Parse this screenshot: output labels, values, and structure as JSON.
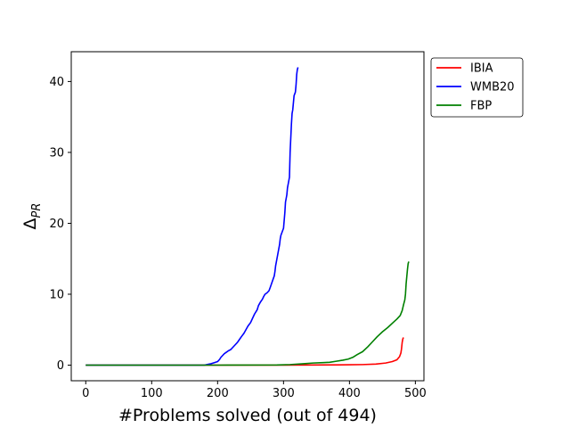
{
  "chart_data": {
    "type": "line",
    "xlabel": "#Problems solved (out of 494)",
    "ylabel": "Δ",
    "ylabel_subscript": "PR",
    "xlim": [
      -22,
      513
    ],
    "ylim": [
      -2.2,
      44.2
    ],
    "xticks": [
      0,
      100,
      200,
      300,
      400,
      500
    ],
    "yticks": [
      0,
      10,
      20,
      30,
      40
    ],
    "grid": false,
    "legend_position": "upper right, outside plot",
    "series": [
      {
        "name": "IBIA",
        "color": "#ff0000",
        "x": [
          0,
          100,
          200,
          300,
          350,
          400,
          420,
          440,
          455,
          465,
          472,
          476,
          478,
          479,
          480,
          481,
          482
        ],
        "y": [
          0,
          0,
          0,
          0,
          0.02,
          0.05,
          0.08,
          0.15,
          0.3,
          0.5,
          0.75,
          1.2,
          1.7,
          2.3,
          3.2,
          3.7,
          3.9
        ]
      },
      {
        "name": "WMB20",
        "color": "#0000ff",
        "x": [
          0,
          100,
          180,
          185,
          190,
          195,
          200,
          203,
          205,
          208,
          210,
          213,
          216,
          220,
          223,
          226,
          230,
          233,
          236,
          240,
          243,
          246,
          250,
          253,
          256,
          260,
          262,
          265,
          268,
          270,
          272,
          275,
          278,
          280,
          283,
          286,
          287,
          288,
          290,
          292,
          294,
          295,
          296,
          298,
          300,
          302,
          303,
          305,
          306,
          308,
          309,
          310,
          312,
          313,
          314,
          315,
          316,
          318,
          319,
          320,
          321,
          322
        ],
        "y": [
          0,
          0,
          0,
          0.1,
          0.2,
          0.35,
          0.5,
          0.8,
          1.1,
          1.4,
          1.6,
          1.8,
          2.0,
          2.2,
          2.5,
          2.8,
          3.2,
          3.6,
          4.0,
          4.5,
          5.0,
          5.5,
          6.0,
          6.6,
          7.2,
          7.8,
          8.4,
          8.9,
          9.3,
          9.7,
          10.0,
          10.2,
          10.5,
          11.0,
          11.8,
          12.6,
          13.2,
          14.0,
          15.0,
          16.0,
          17.0,
          17.8,
          18.3,
          18.8,
          19.3,
          21.5,
          23.0,
          24.0,
          25.0,
          26.0,
          26.5,
          30.0,
          34.0,
          35.5,
          36.0,
          37.0,
          38.0,
          38.5,
          39.5,
          41.0,
          41.7,
          42.0
        ]
      },
      {
        "name": "FBP",
        "color": "#008000",
        "x": [
          0,
          100,
          200,
          290,
          310,
          330,
          345,
          360,
          370,
          380,
          390,
          398,
          405,
          412,
          420,
          428,
          435,
          442,
          450,
          458,
          465,
          472,
          477,
          480,
          482,
          484,
          485,
          486,
          487,
          488,
          489,
          490
        ],
        "y": [
          0,
          0,
          0,
          0.02,
          0.08,
          0.2,
          0.3,
          0.35,
          0.4,
          0.55,
          0.7,
          0.85,
          1.1,
          1.5,
          1.9,
          2.6,
          3.3,
          4.0,
          4.7,
          5.3,
          5.9,
          6.5,
          7.0,
          7.7,
          8.5,
          9.2,
          10.0,
          11.5,
          12.5,
          13.5,
          14.3,
          14.6
        ]
      }
    ]
  }
}
